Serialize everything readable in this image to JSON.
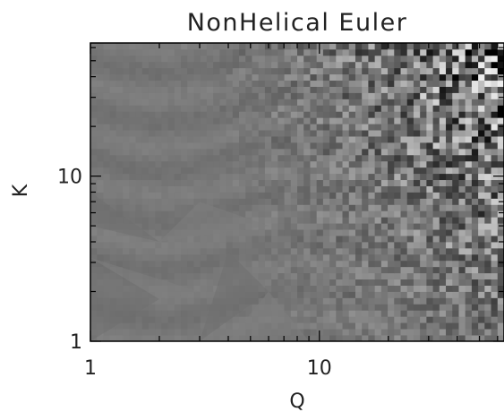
{
  "chart_data": {
    "type": "heatmap",
    "title": "NonHelical Euler",
    "xlabel": "Q",
    "ylabel": "K",
    "x_scale": "log",
    "y_scale": "log",
    "xlim": [
      1,
      64
    ],
    "ylim": [
      1,
      64
    ],
    "x_ticks": [
      {
        "value": 1,
        "label": "1"
      },
      {
        "value": 10,
        "label": "10"
      }
    ],
    "y_ticks": [
      {
        "value": 1,
        "label": "1"
      },
      {
        "value": 10,
        "label": "10"
      }
    ],
    "colormap": "grayscale",
    "value_range": [
      -1,
      1
    ],
    "background_level": 0.0,
    "description_of_field": "near-uniform mid gray at low Q and low K; fluctuation amplitude grows toward high Q and high K, saturating black/white at the upper right"
  },
  "colors": {
    "background": "#ffffff",
    "axis": "#000000",
    "mid_gray": "#777777"
  }
}
